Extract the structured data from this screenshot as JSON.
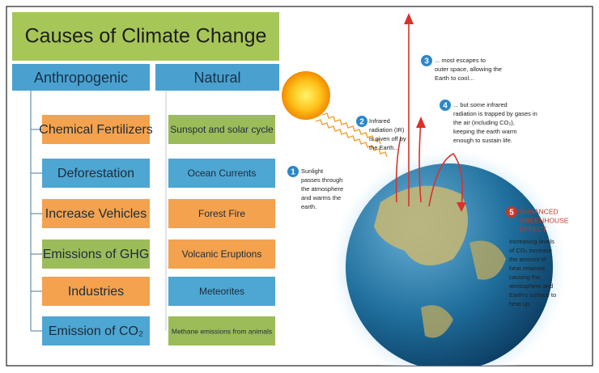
{
  "title": "Causes of Climate Change",
  "columns": [
    {
      "heading": "Anthropogenic",
      "items": [
        "Chemical Fertilizers",
        "Deforestation",
        "Increase Vehicles",
        "Emissions of GHG",
        "Industries",
        "Emission of CO₂"
      ]
    },
    {
      "heading": "Natural",
      "items": [
        "Sunspot and solar cycle",
        "Ocean Currents",
        "Forest Fire",
        "Volcanic Eruptions",
        "Meteorites",
        "Methane emissions from animals"
      ]
    }
  ],
  "steps": [
    {
      "number": "1",
      "lines": [
        "Sunlight",
        "passes through",
        "the atmosphere",
        "and warms the",
        "earth."
      ]
    },
    {
      "number": "2",
      "lines": [
        "Infrared",
        "radiation (IR)",
        "is given off by",
        "the Earth..."
      ]
    },
    {
      "number": "3",
      "lines": [
        "... most escapes to",
        "outer space, allowing the",
        "Earth to cool..."
      ]
    },
    {
      "number": "4",
      "lines": [
        "... but some infrared",
        "radiation is trapped by gases in",
        "the air (including CO₂),",
        "keeping the earth warm",
        "enough to sustain life."
      ]
    },
    {
      "number": "5",
      "heading": [
        "ENHANCED",
        "GREENHOUSE",
        "EFFECT"
      ],
      "lines": [
        "Increasing levels",
        "of CO₂ increase",
        "the amount of",
        "heat retained,",
        "causing the",
        "atmosphere and",
        "Earth's surface to",
        "heat up."
      ]
    }
  ]
}
